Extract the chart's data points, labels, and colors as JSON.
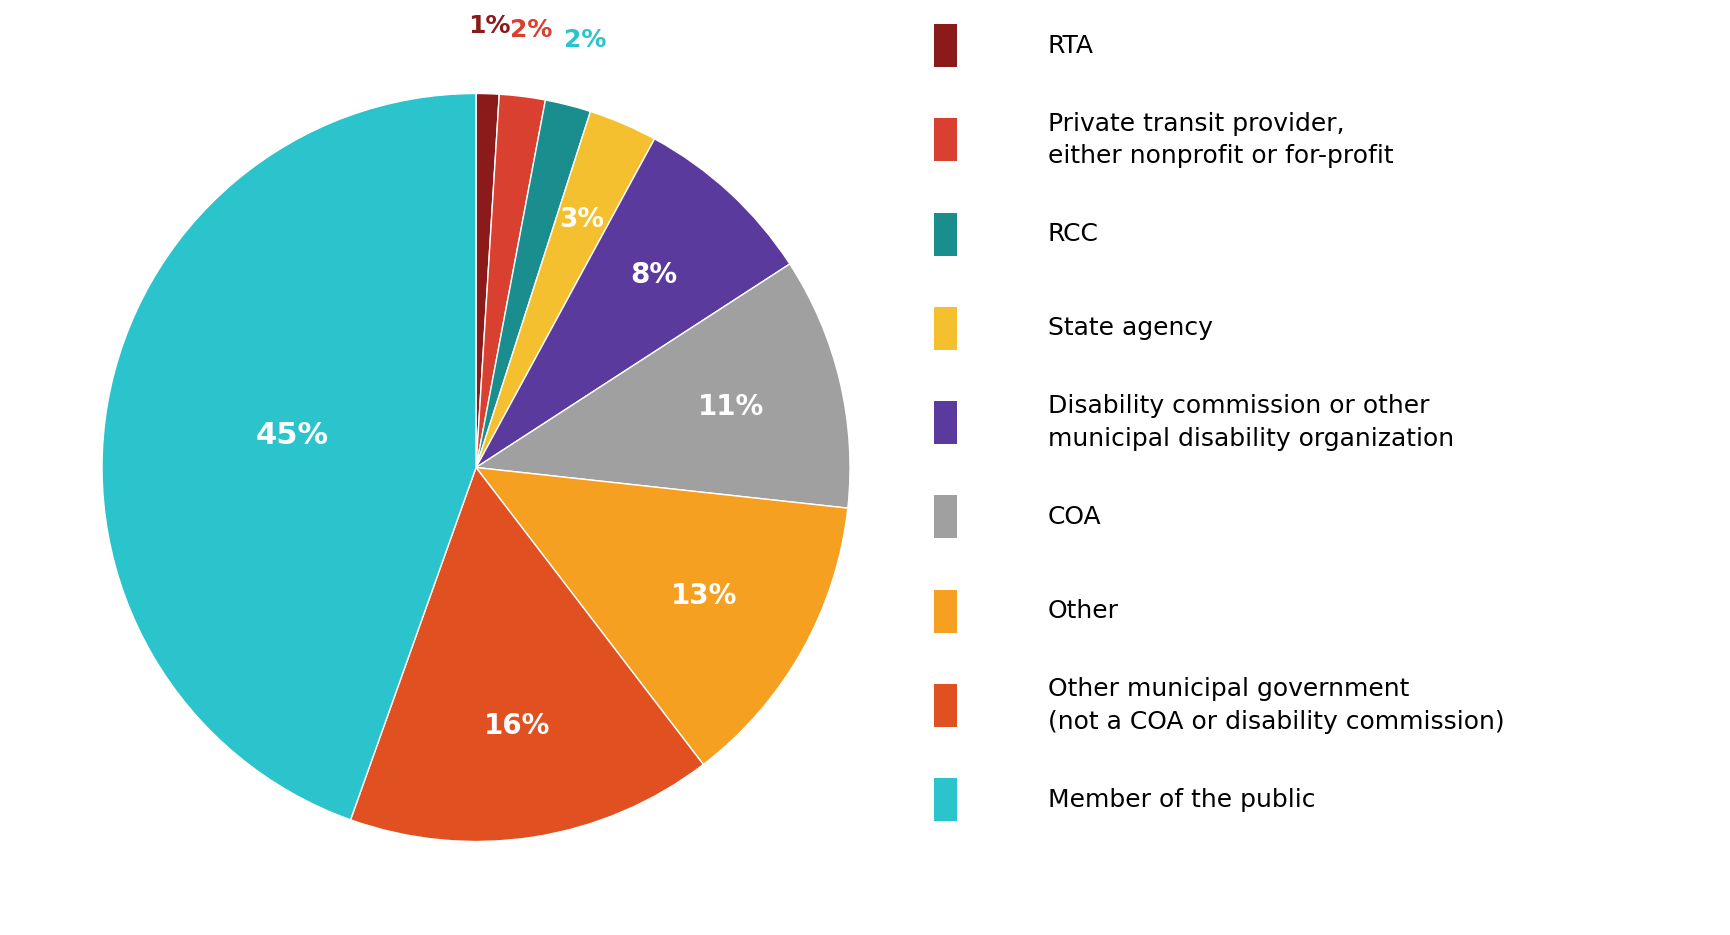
{
  "labels": [
    "RTA",
    "Private transit provider,\neither nonprofit or for-profit",
    "RCC",
    "State agency",
    "Disability commission or other\nmunicipal disability organization",
    "COA",
    "Other",
    "Other municipal government\n(not a COA or disability commission)",
    "Member of the public"
  ],
  "values": [
    1,
    2,
    2,
    3,
    8,
    11,
    13,
    16,
    45
  ],
  "colors": [
    "#8B1A1A",
    "#D94030",
    "#1A8E8E",
    "#F5C030",
    "#5B3A9E",
    "#A0A0A0",
    "#F5A020",
    "#E05020",
    "#2BC4CC"
  ],
  "pct_labels": [
    "1%",
    "2%",
    "2%",
    "3%",
    "8%",
    "11%",
    "13%",
    "16%",
    "45%"
  ],
  "legend_labels": [
    "RTA",
    "Private transit provider,\neither nonprofit or for-profit",
    "RCC",
    "State agency",
    "Disability commission or other\nmunicipal disability organization",
    "COA",
    "Other",
    "Other municipal government\n(not a COA or disability commission)",
    "Member of the public"
  ],
  "background_color": "#ffffff",
  "label_fontsize": 20,
  "legend_fontsize": 18,
  "outside_label_colors": [
    "#8B1A1A",
    "#D94030",
    "#2BC4CC"
  ],
  "outside_label_fontsize": 18
}
